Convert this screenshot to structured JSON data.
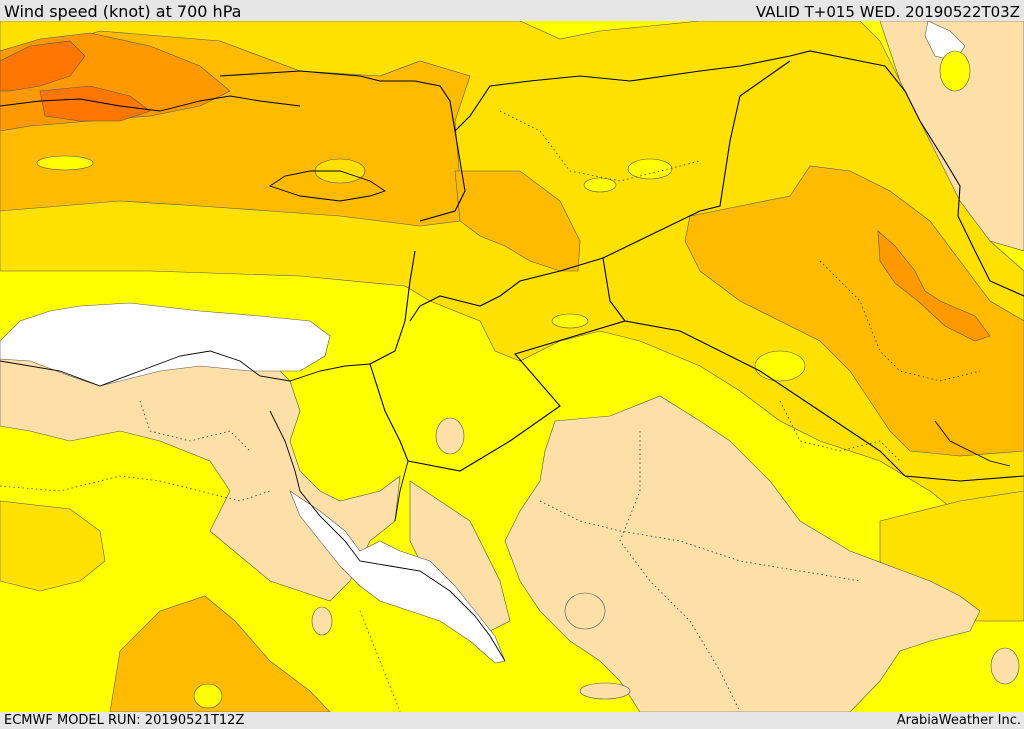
{
  "header": {
    "title": "Wind speed (knot) at 700 hPa",
    "valid": "VALID T+015 WED. 20190522T03Z"
  },
  "footer": {
    "model_run": "ECMWF MODEL RUN: 20190521T12Z",
    "credit": "ArabiaWeather Inc."
  },
  "map": {
    "colors": {
      "calm": "#ffffff",
      "light": "#fde0a8",
      "moderate": "#ffff00",
      "fresh": "#ffe100",
      "strong": "#ffbb00",
      "very_strong": "#ff9900",
      "extreme": "#ff7700",
      "border": "#000000",
      "contour": "#555555"
    }
  }
}
